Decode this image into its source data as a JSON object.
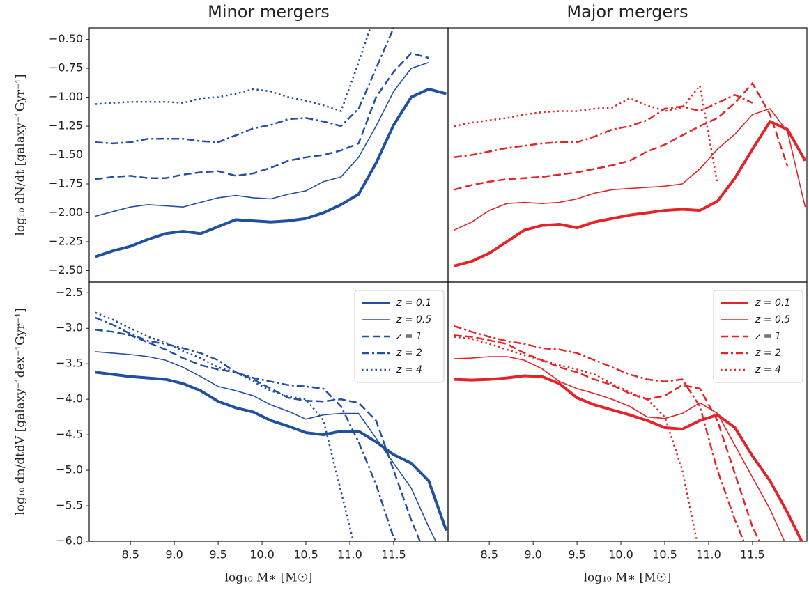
{
  "chart_data": [
    {
      "type": "line",
      "title": "Minor mergers",
      "ylabel": "log₁₀ dN/dt [galaxy⁻¹Gyr⁻¹]",
      "x": [
        8.1,
        8.3,
        8.5,
        8.7,
        8.9,
        9.1,
        9.3,
        9.5,
        9.7,
        9.9,
        10.1,
        10.3,
        10.5,
        10.7,
        10.9,
        11.1,
        11.3,
        11.5,
        11.7,
        11.9,
        12.1
      ],
      "xlim": [
        8.03,
        12.12
      ],
      "ylim": [
        -2.6,
        -0.4
      ],
      "yticks": [
        {
          "value": -0.5,
          "label": "−0.50"
        },
        {
          "value": -0.75,
          "label": "−0.75"
        },
        {
          "value": -1.0,
          "label": "−1.00"
        },
        {
          "value": -1.25,
          "label": "−1.25"
        },
        {
          "value": -1.5,
          "label": "−1.50"
        },
        {
          "value": -1.75,
          "label": "−1.75"
        },
        {
          "value": -2.0,
          "label": "−2.00"
        },
        {
          "value": -2.25,
          "label": "−2.25"
        },
        {
          "value": -2.5,
          "label": "−2.50"
        }
      ],
      "series": [
        {
          "color": "#2150a0",
          "linestyle": "solid",
          "linewidth": 4,
          "values": [
            -2.38,
            -2.33,
            -2.29,
            -2.23,
            -2.18,
            -2.16,
            -2.18,
            -2.12,
            -2.06,
            -2.07,
            -2.08,
            -2.07,
            -2.05,
            -2.0,
            -1.93,
            -1.84,
            -1.57,
            -1.24,
            -1.0,
            -0.93,
            -0.97
          ]
        },
        {
          "color": "#2150a0",
          "linestyle": "solid",
          "linewidth": 1.6,
          "values": [
            -2.03,
            -1.99,
            -1.95,
            -1.93,
            -1.94,
            -1.95,
            -1.91,
            -1.87,
            -1.85,
            -1.87,
            -1.88,
            -1.84,
            -1.81,
            -1.73,
            -1.69,
            -1.52,
            -1.25,
            -0.95,
            -0.75,
            -0.7,
            null
          ]
        },
        {
          "color": "#2150a0",
          "linestyle": "dashed",
          "linewidth": 2.5,
          "values": [
            -1.71,
            -1.69,
            -1.68,
            -1.7,
            -1.7,
            -1.67,
            -1.65,
            -1.64,
            -1.68,
            -1.66,
            -1.61,
            -1.55,
            -1.52,
            -1.5,
            -1.46,
            -1.4,
            -1.0,
            -0.78,
            -0.62,
            -0.66,
            null
          ]
        },
        {
          "color": "#2150a0",
          "linestyle": "dashdot",
          "linewidth": 2.5,
          "values": [
            -1.39,
            -1.4,
            -1.39,
            -1.36,
            -1.36,
            -1.36,
            -1.38,
            -1.39,
            -1.33,
            -1.27,
            -1.24,
            -1.19,
            -1.18,
            -1.21,
            -1.25,
            -1.1,
            -0.75,
            -0.4,
            null,
            null,
            null
          ]
        },
        {
          "color": "#2150a0",
          "linestyle": "dotted",
          "linewidth": 2.5,
          "values": [
            -1.06,
            -1.05,
            -1.04,
            -1.04,
            -1.04,
            -1.05,
            -1.01,
            -1.0,
            -0.97,
            -0.93,
            -0.95,
            -1.0,
            -1.03,
            -1.07,
            -1.12,
            -0.7,
            -0.25,
            null,
            null,
            null,
            null
          ]
        }
      ]
    },
    {
      "type": "line",
      "title": "Major mergers",
      "x": [
        8.1,
        8.3,
        8.5,
        8.7,
        8.9,
        9.1,
        9.3,
        9.5,
        9.7,
        9.9,
        10.1,
        10.3,
        10.5,
        10.7,
        10.9,
        11.1,
        11.3,
        11.5,
        11.7,
        11.9,
        12.1
      ],
      "xlim": [
        8.03,
        12.12
      ],
      "ylim": [
        -2.6,
        -0.4
      ],
      "series": [
        {
          "color": "#e32428",
          "linestyle": "solid",
          "linewidth": 4,
          "values": [
            -2.46,
            -2.42,
            -2.35,
            -2.25,
            -2.15,
            -2.11,
            -2.1,
            -2.13,
            -2.08,
            -2.05,
            -2.02,
            -2.0,
            -1.98,
            -1.97,
            -1.98,
            -1.9,
            -1.7,
            -1.45,
            -1.21,
            -1.28,
            -1.55
          ]
        },
        {
          "color": "#e32428",
          "linestyle": "solid",
          "linewidth": 1.6,
          "values": [
            -2.15,
            -2.08,
            -1.98,
            -1.92,
            -1.91,
            -1.92,
            -1.91,
            -1.88,
            -1.83,
            -1.8,
            -1.79,
            -1.78,
            -1.77,
            -1.75,
            -1.62,
            -1.45,
            -1.32,
            -1.15,
            -1.1,
            -1.3,
            -1.95
          ]
        },
        {
          "color": "#e32428",
          "linestyle": "dashed",
          "linewidth": 2.5,
          "values": [
            -1.8,
            -1.76,
            -1.73,
            -1.71,
            -1.7,
            -1.69,
            -1.67,
            -1.65,
            -1.62,
            -1.59,
            -1.55,
            -1.47,
            -1.41,
            -1.33,
            -1.25,
            -1.18,
            -1.05,
            -0.88,
            -1.15,
            -1.6,
            null
          ]
        },
        {
          "color": "#e32428",
          "linestyle": "dashdot",
          "linewidth": 2.5,
          "values": [
            -1.52,
            -1.5,
            -1.47,
            -1.44,
            -1.42,
            -1.4,
            -1.39,
            -1.39,
            -1.34,
            -1.28,
            -1.25,
            -1.2,
            -1.1,
            -1.08,
            -1.12,
            -1.05,
            -0.98,
            -1.05,
            null,
            null,
            null
          ]
        },
        {
          "color": "#e32428",
          "linestyle": "dotted",
          "linewidth": 2.5,
          "values": [
            -1.25,
            -1.22,
            -1.2,
            -1.18,
            -1.15,
            -1.13,
            -1.12,
            -1.12,
            -1.1,
            -1.09,
            -1.01,
            -1.07,
            -1.12,
            -1.09,
            -0.9,
            -1.75,
            null,
            null,
            null,
            null,
            null
          ]
        }
      ]
    },
    {
      "type": "line",
      "ylabel": "log₁₀ dn/dtdV [galaxy⁻¹dex⁻¹Gyr⁻¹]",
      "xlabel": "log₁₀ M∗ [M☉]",
      "legend": "upper right",
      "x": [
        8.1,
        8.3,
        8.5,
        8.7,
        8.9,
        9.1,
        9.3,
        9.5,
        9.7,
        9.9,
        10.1,
        10.3,
        10.5,
        10.7,
        10.9,
        11.1,
        11.3,
        11.5,
        11.7,
        11.9,
        12.1
      ],
      "xlim": [
        8.03,
        12.12
      ],
      "ylim": [
        -6.0,
        -2.35
      ],
      "xticks": [
        8.5,
        {
          "value": 9,
          "label": "9.0"
        },
        9.5,
        {
          "value": 10,
          "label": "10.0"
        },
        10.5,
        {
          "value": 11,
          "label": "11.0"
        },
        11.5
      ],
      "yticks": [
        {
          "value": -2.5,
          "label": "−2.5"
        },
        {
          "value": -3,
          "label": "−3.0"
        },
        {
          "value": -3.5,
          "label": "−3.5"
        },
        {
          "value": -4,
          "label": "−4.0"
        },
        {
          "value": -4.5,
          "label": "−4.5"
        },
        {
          "value": -5,
          "label": "−5.0"
        },
        {
          "value": -5.5,
          "label": "−5.5"
        },
        {
          "value": -6,
          "label": "−6.0"
        }
      ],
      "series": [
        {
          "name": "z = 0.1",
          "color": "#2150a0",
          "linestyle": "solid",
          "linewidth": 4,
          "values": [
            -3.62,
            -3.65,
            -3.68,
            -3.7,
            -3.72,
            -3.78,
            -3.88,
            -4.03,
            -4.12,
            -4.18,
            -4.3,
            -4.38,
            -4.47,
            -4.5,
            -4.45,
            -4.45,
            -4.6,
            -4.78,
            -4.9,
            -5.15,
            -5.85
          ]
        },
        {
          "name": "z = 0.5",
          "color": "#2150a0",
          "linestyle": "solid",
          "linewidth": 1.6,
          "values": [
            -3.33,
            -3.35,
            -3.37,
            -3.4,
            -3.45,
            -3.55,
            -3.68,
            -3.82,
            -3.88,
            -3.95,
            -4.08,
            -4.17,
            -4.28,
            -4.22,
            -4.2,
            -4.2,
            -4.55,
            -4.9,
            -5.25,
            -5.8,
            -6.3
          ]
        },
        {
          "name": "z = 1",
          "color": "#2150a0",
          "linestyle": "dashed",
          "linewidth": 2.5,
          "values": [
            -3.02,
            -3.05,
            -3.1,
            -3.2,
            -3.3,
            -3.42,
            -3.52,
            -3.58,
            -3.62,
            -3.72,
            -3.85,
            -3.98,
            -4.02,
            -4.03,
            -4.0,
            -4.05,
            -4.3,
            -5.0,
            -5.7,
            -6.3,
            null
          ]
        },
        {
          "name": "z = 2",
          "color": "#2150a0",
          "linestyle": "dashdot",
          "linewidth": 2.5,
          "values": [
            -2.85,
            -2.95,
            -3.08,
            -3.18,
            -3.22,
            -3.28,
            -3.35,
            -3.45,
            -3.62,
            -3.7,
            -3.75,
            -3.8,
            -3.82,
            -3.85,
            -4.1,
            -4.6,
            -5.2,
            -5.95,
            -6.3,
            null,
            null
          ]
        },
        {
          "name": "z = 4",
          "color": "#2150a0",
          "linestyle": "dotted",
          "linewidth": 2.5,
          "values": [
            -2.78,
            -2.88,
            -3.0,
            -3.12,
            -3.2,
            -3.32,
            -3.42,
            -3.55,
            -3.62,
            -3.75,
            -3.88,
            -3.96,
            -4.0,
            -4.3,
            -5.3,
            -6.3,
            null,
            null,
            null,
            null,
            null
          ]
        }
      ]
    },
    {
      "type": "line",
      "xlabel": "log₁₀ M∗ [M☉]",
      "legend": "upper right",
      "x": [
        8.1,
        8.3,
        8.5,
        8.7,
        8.9,
        9.1,
        9.3,
        9.5,
        9.7,
        9.9,
        10.1,
        10.3,
        10.5,
        10.7,
        10.9,
        11.1,
        11.3,
        11.5,
        11.7,
        11.9,
        12.1
      ],
      "xlim": [
        8.03,
        12.12
      ],
      "ylim": [
        -6.0,
        -2.35
      ],
      "xticks": [
        8.5,
        {
          "value": 9,
          "label": "9.0"
        },
        9.5,
        {
          "value": 10,
          "label": "10.0"
        },
        10.5,
        {
          "value": 11,
          "label": "11.0"
        },
        11.5
      ],
      "series": [
        {
          "name": "z = 0.1",
          "color": "#e32428",
          "linestyle": "solid",
          "linewidth": 4,
          "values": [
            -3.72,
            -3.73,
            -3.72,
            -3.7,
            -3.67,
            -3.68,
            -3.78,
            -3.98,
            -4.08,
            -4.15,
            -4.22,
            -4.3,
            -4.4,
            -4.42,
            -4.3,
            -4.22,
            -4.4,
            -4.8,
            -5.15,
            -5.6,
            -6.1
          ]
        },
        {
          "name": "z = 0.5",
          "color": "#e32428",
          "linestyle": "solid",
          "linewidth": 1.6,
          "values": [
            -3.43,
            -3.42,
            -3.4,
            -3.4,
            -3.45,
            -3.57,
            -3.75,
            -3.85,
            -3.92,
            -4.0,
            -4.1,
            -4.25,
            -4.27,
            -4.2,
            -4.05,
            -4.2,
            -4.65,
            -5.1,
            -5.55,
            -6.1,
            null
          ]
        },
        {
          "name": "z = 1",
          "color": "#e32428",
          "linestyle": "dashed",
          "linewidth": 2.5,
          "values": [
            -3.1,
            -3.12,
            -3.17,
            -3.22,
            -3.35,
            -3.45,
            -3.55,
            -3.62,
            -3.72,
            -3.8,
            -3.92,
            -4.0,
            -3.95,
            -3.8,
            -3.85,
            -4.3,
            -5.05,
            -5.8,
            -6.3,
            null,
            null
          ]
        },
        {
          "name": "z = 2",
          "color": "#e32428",
          "linestyle": "dashdot",
          "linewidth": 2.5,
          "values": [
            -2.97,
            -3.05,
            -3.12,
            -3.18,
            -3.22,
            -3.28,
            -3.3,
            -3.35,
            -3.45,
            -3.55,
            -3.65,
            -3.72,
            -3.75,
            -3.72,
            -4.1,
            -5.0,
            -5.7,
            -6.3,
            null,
            null,
            null
          ]
        },
        {
          "name": "z = 4",
          "color": "#e32428",
          "linestyle": "dotted",
          "linewidth": 2.5,
          "values": [
            -3.12,
            -3.15,
            -3.22,
            -3.3,
            -3.38,
            -3.45,
            -3.52,
            -3.58,
            -3.65,
            -3.78,
            -3.9,
            -4.0,
            -4.25,
            -5.0,
            -6.2,
            null,
            null,
            null,
            null,
            null,
            null
          ]
        }
      ]
    }
  ]
}
